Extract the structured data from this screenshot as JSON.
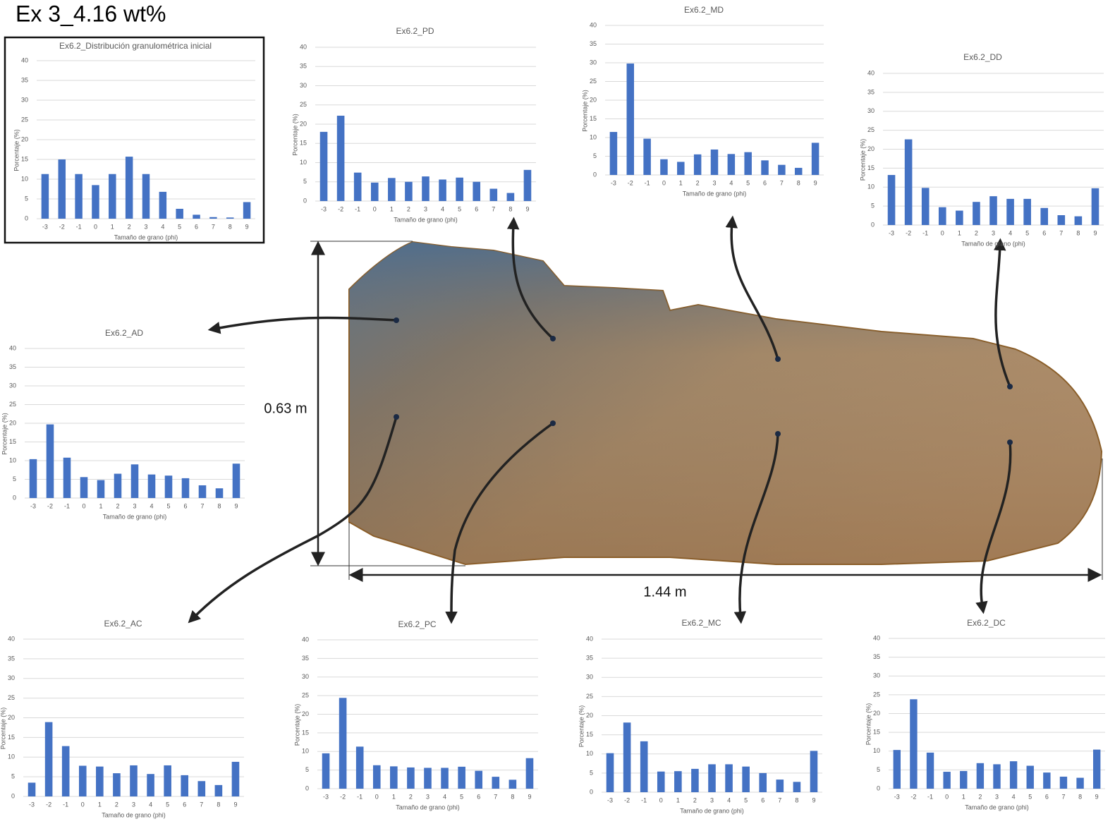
{
  "title": "Ex 3_4.16 wt%",
  "dimensions": {
    "height": "0.63 m",
    "length": "1.44 m"
  },
  "chart_data": [
    {
      "type": "bar",
      "title": "Ex6.2_Distribución granulométrica inicial",
      "x_label": "Tamaño de grano (phi)",
      "y_label": "Porcentaje (%)",
      "categories": [
        "-3",
        "-2",
        "-1",
        "0",
        "1",
        "2",
        "3",
        "4",
        "5",
        "6",
        "7",
        "8",
        "9"
      ],
      "values": [
        11.3,
        15,
        11.3,
        8.5,
        11.3,
        15.7,
        11.3,
        6.8,
        2.5,
        1,
        0.4,
        0.3,
        4.2
      ],
      "color": "#4472c4",
      "ylim": [
        0,
        40
      ],
      "yticks": [
        0,
        5,
        10,
        15,
        20,
        25,
        30,
        35,
        40
      ],
      "grid": true
    },
    {
      "type": "bar",
      "title": "Ex6.2_PD",
      "x_label": "Tamaño de grano (phi)",
      "y_label": "Porcentaje (%)",
      "categories": [
        "-3",
        "-2",
        "-1",
        "0",
        "1",
        "2",
        "3",
        "4",
        "5",
        "6",
        "7",
        "8",
        "9"
      ],
      "values": [
        18,
        22.2,
        7.4,
        4.8,
        6,
        5,
        6.4,
        5.6,
        6.1,
        5,
        3.2,
        2.1,
        8.1
      ],
      "color": "#4472c4",
      "ylim": [
        0,
        40
      ],
      "yticks": [
        0,
        5,
        10,
        15,
        20,
        25,
        30,
        35,
        40
      ],
      "grid": true
    },
    {
      "type": "bar",
      "title": "Ex6.2_MD",
      "x_label": "Tamaño de grano (phi)",
      "y_label": "Porcentaje (%)",
      "categories": [
        "-3",
        "-2",
        "-1",
        "0",
        "1",
        "2",
        "3",
        "4",
        "5",
        "6",
        "7",
        "8",
        "9"
      ],
      "values": [
        11.5,
        29.8,
        9.7,
        4.2,
        3.5,
        5.5,
        6.8,
        5.6,
        6.1,
        3.9,
        2.7,
        1.9,
        8.6
      ],
      "color": "#4472c4",
      "ylim": [
        0,
        40
      ],
      "yticks": [
        0,
        5,
        10,
        15,
        20,
        25,
        30,
        35,
        40
      ],
      "grid": true
    },
    {
      "type": "bar",
      "title": "Ex6.2_DD",
      "x_label": "Tamaño de grano (phi)",
      "y_label": "Porcentaje (%)",
      "categories": [
        "-3",
        "-2",
        "-1",
        "0",
        "1",
        "2",
        "3",
        "4",
        "5",
        "6",
        "7",
        "8",
        "9"
      ],
      "values": [
        13.2,
        22.6,
        9.8,
        4.7,
        3.8,
        6.1,
        7.6,
        6.9,
        6.9,
        4.5,
        2.6,
        2.3,
        9.7
      ],
      "color": "#4472c4",
      "ylim": [
        0,
        40
      ],
      "yticks": [
        0,
        5,
        10,
        15,
        20,
        25,
        30,
        35,
        40
      ],
      "grid": true
    },
    {
      "type": "bar",
      "title": "Ex6.2_AD",
      "x_label": "Tamaño de grano (phi)",
      "y_label": "Porcentaje (%)",
      "categories": [
        "-3",
        "-2",
        "-1",
        "0",
        "1",
        "2",
        "3",
        "4",
        "5",
        "6",
        "7",
        "8",
        "9"
      ],
      "values": [
        10.4,
        19.7,
        10.8,
        5.6,
        4.8,
        6.5,
        9,
        6.3,
        6,
        5.3,
        3.4,
        2.6,
        9.2
      ],
      "color": "#4472c4",
      "ylim": [
        0,
        40
      ],
      "yticks": [
        0,
        5,
        10,
        15,
        20,
        25,
        30,
        35,
        40
      ],
      "grid": true
    },
    {
      "type": "bar",
      "title": "Ex6.2_AC",
      "x_label": "Tamaño de grano (phi)",
      "y_label": "Porcentaje (%)",
      "categories": [
        "-3",
        "-2",
        "-1",
        "0",
        "1",
        "2",
        "3",
        "4",
        "5",
        "6",
        "7",
        "8",
        "9"
      ],
      "values": [
        3.5,
        18.9,
        12.8,
        7.8,
        7.6,
        5.9,
        7.9,
        5.7,
        7.9,
        5.4,
        3.9,
        2.9,
        8.8
      ],
      "color": "#4472c4",
      "ylim": [
        0,
        40
      ],
      "yticks": [
        0,
        5,
        10,
        15,
        20,
        25,
        30,
        35,
        40
      ],
      "grid": true
    },
    {
      "type": "bar",
      "title": "Ex6.2_PC",
      "x_label": "Tamaño de grano (phi)",
      "y_label": "Porcentaje (%)",
      "categories": [
        "-3",
        "-2",
        "-1",
        "0",
        "1",
        "2",
        "3",
        "4",
        "5",
        "6",
        "7",
        "8",
        "9"
      ],
      "values": [
        9.5,
        24.4,
        11.3,
        6.3,
        6,
        5.7,
        5.6,
        5.6,
        5.9,
        4.8,
        3.2,
        2.4,
        8.2
      ],
      "color": "#4472c4",
      "ylim": [
        0,
        40
      ],
      "yticks": [
        0,
        5,
        10,
        15,
        20,
        25,
        30,
        35,
        40
      ],
      "grid": true
    },
    {
      "type": "bar",
      "title": "Ex6.2_MC",
      "x_label": "Tamaño de grano (phi)",
      "y_label": "Porcentaje (%)",
      "categories": [
        "-3",
        "-2",
        "-1",
        "0",
        "1",
        "2",
        "3",
        "4",
        "5",
        "6",
        "7",
        "8",
        "9"
      ],
      "values": [
        10.2,
        18.2,
        13.3,
        5.4,
        5.5,
        6.1,
        7.3,
        7.3,
        6.7,
        5,
        3.3,
        2.7,
        10.8
      ],
      "color": "#4472c4",
      "ylim": [
        0,
        40
      ],
      "yticks": [
        0,
        5,
        10,
        15,
        20,
        25,
        30,
        35,
        40
      ],
      "grid": true
    },
    {
      "type": "bar",
      "title": "Ex6.2_DC",
      "x_label": "Tamaño de grano (phi)",
      "y_label": "Porcentaje (%)",
      "categories": [
        "-3",
        "-2",
        "-1",
        "0",
        "1",
        "2",
        "3",
        "4",
        "5",
        "6",
        "7",
        "8",
        "9"
      ],
      "values": [
        10.3,
        23.8,
        9.6,
        4.5,
        4.7,
        6.8,
        6.5,
        7.3,
        6.1,
        4.3,
        3.2,
        2.9,
        10.4
      ],
      "color": "#4472c4",
      "ylim": [
        0,
        40
      ],
      "yticks": [
        0,
        5,
        10,
        15,
        20,
        25,
        30,
        35,
        40
      ],
      "grid": true
    }
  ]
}
